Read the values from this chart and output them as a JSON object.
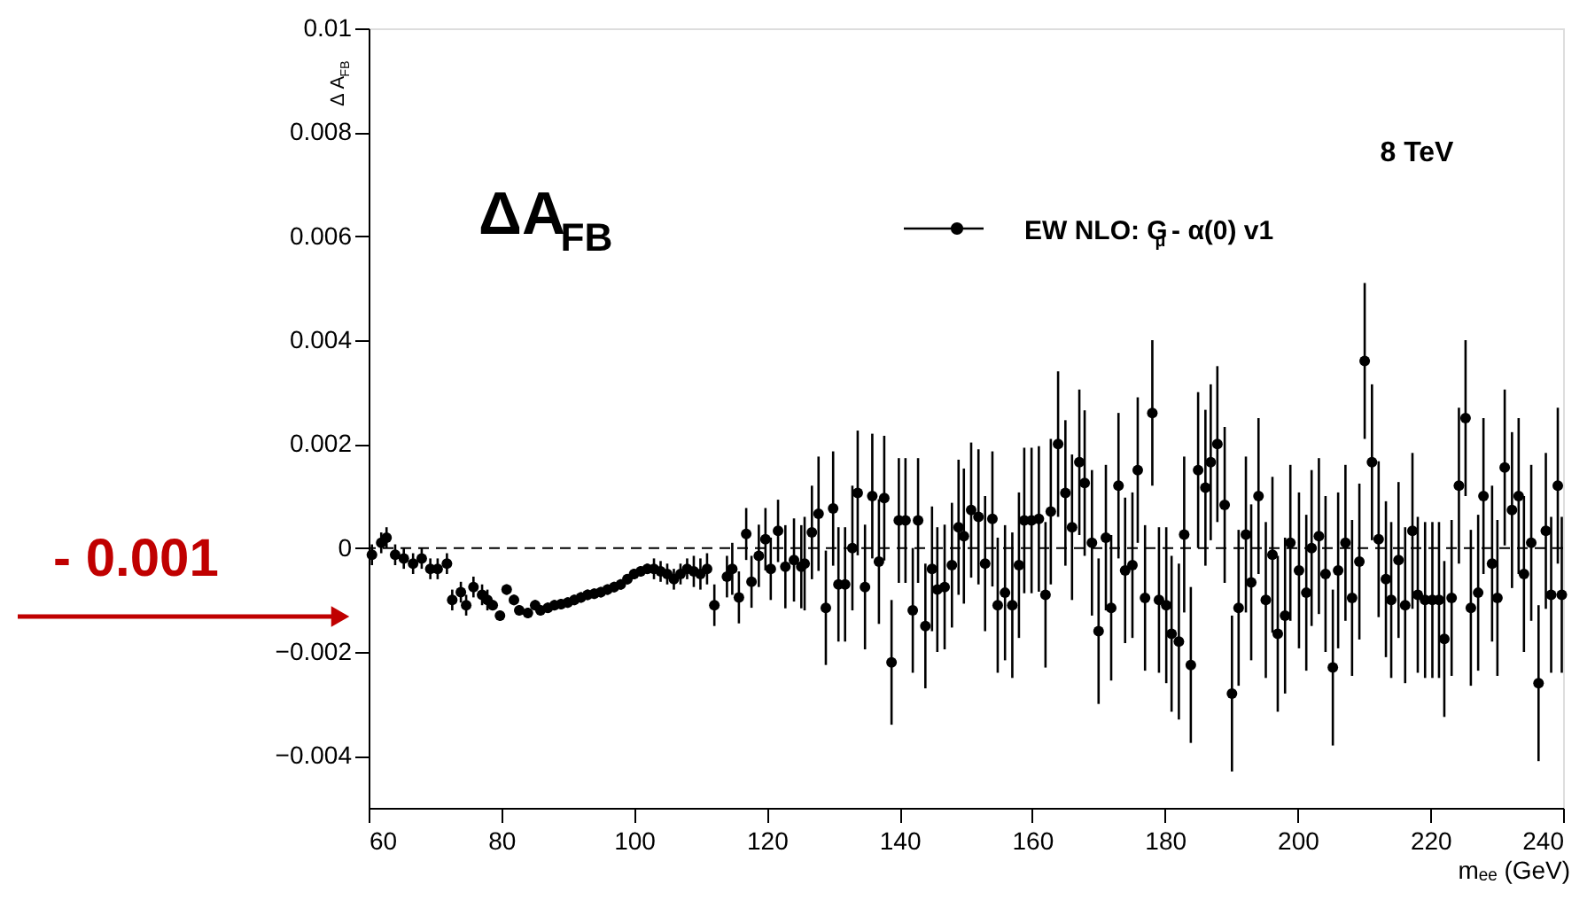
{
  "chart_data": {
    "type": "scatter",
    "xlabel": "mₑₑ (GeV)",
    "ylabel": "Δ A$_{FB}$",
    "annotations": [
      "8 TeV",
      "ΔA$_{FB}$",
      "- 0.001"
    ],
    "x": [
      60.5,
      61.9,
      62.7,
      64.0,
      65.3,
      66.7,
      68.0,
      69.3,
      70.4,
      71.8,
      72.6,
      73.9,
      74.7,
      75.8,
      77.1,
      77.9,
      78.7,
      79.8,
      80.8,
      81.9,
      82.7,
      84.0,
      85.1,
      85.9,
      87,
      88,
      89,
      90,
      91,
      92,
      93,
      94,
      95,
      96,
      97,
      98,
      99,
      100,
      101,
      102,
      103,
      104,
      105,
      106,
      107,
      108,
      109,
      110,
      111,
      112.1,
      114.0,
      114.8,
      115.8,
      116.9,
      117.7,
      118.8,
      119.8,
      120.6,
      121.7,
      122.8,
      124.1,
      125.2,
      125.7,
      126.8,
      127.8,
      128.9,
      130.0,
      130.8,
      131.8,
      132.9,
      133.7,
      134.8,
      135.9,
      136.9,
      137.7,
      138.8,
      139.9,
      140.9,
      142.0,
      142.8,
      143.9,
      144.9,
      145.7,
      146.8,
      147.9,
      148.9,
      149.7,
      150.8,
      151.9,
      152.9,
      154.0,
      154.8,
      155.9,
      157.0,
      158.0,
      158.8,
      159.9,
      161.0,
      162.0,
      162.8,
      163.9,
      165.0,
      166.0,
      167.1,
      167.9,
      169.0,
      170.0,
      171.1,
      171.9,
      173.0,
      174.0,
      175.1,
      175.9,
      177.0,
      178.1,
      179.1,
      180.2,
      181.0,
      182.1,
      182.9,
      183.9,
      185.0,
      186.1,
      186.9,
      187.9,
      189.0,
      190.1,
      191.1,
      192.2,
      193.0,
      194.1,
      195.2,
      196.2,
      197.0,
      198.1,
      198.9,
      200.2,
      201.3,
      202.1,
      203.2,
      204.2,
      205.3,
      206.1,
      207.2,
      208.2,
      209.3,
      210.1,
      211.2,
      212.2,
      213.3,
      214.1,
      215.2,
      216.2,
      217.3,
      218.1,
      219.2,
      220.3,
      221.3,
      222.1,
      223.2,
      224.3,
      225.3,
      226.1,
      227.2,
      228.0,
      229.3,
      230.1,
      231.2,
      232.3,
      233.3,
      234.1,
      235.2,
      236.3,
      237.4,
      238.2,
      239.2,
      239.8
    ],
    "series": [
      {
        "name": "EW NLO: G$_{μ}$ - α(0) v1",
        "color": "#000000",
        "values": [
          -0.00013,
          0.0001,
          0.0002,
          -0.00013,
          -0.0002,
          -0.0003,
          -0.0002,
          -0.0004,
          -0.0004,
          -0.0003,
          -0.001,
          -0.00085,
          -0.0011,
          -0.00075,
          -0.0009,
          -0.001,
          -0.0011,
          -0.0013,
          -0.0008,
          -0.001,
          -0.0012,
          -0.00125,
          -0.0011,
          -0.0012,
          -0.00115,
          -0.0011,
          -0.00108,
          -0.00105,
          -0.001,
          -0.00095,
          -0.0009,
          -0.00088,
          -0.00085,
          -0.0008,
          -0.00075,
          -0.0007,
          -0.0006,
          -0.0005,
          -0.00045,
          -0.0004,
          -0.0004,
          -0.00045,
          -0.0005,
          -0.0006,
          -0.0005,
          -0.0004,
          -0.00045,
          -0.0005,
          -0.0004,
          -0.0011,
          -0.00055,
          -0.0004,
          -0.00095,
          0.00027,
          -0.00065,
          -0.00015,
          0.00017,
          -0.0004,
          0.00033,
          -0.00036,
          -0.00023,
          -0.00036,
          -0.0003,
          0.0003,
          0.00066,
          -0.00115,
          0.00076,
          -0.0007,
          -0.0007,
          0.0,
          0.00106,
          -0.00075,
          0.001,
          -0.00026,
          0.00096,
          -0.0022,
          0.00053,
          0.00053,
          -0.0012,
          0.00053,
          -0.0015,
          -0.0004,
          -0.0008,
          -0.00075,
          -0.00033,
          0.0004,
          0.00023,
          0.00073,
          0.0006,
          -0.0003,
          0.00056,
          -0.0011,
          -0.00086,
          -0.0011,
          -0.00033,
          0.00053,
          0.00053,
          0.00056,
          -0.0009,
          0.0007,
          0.002,
          0.00106,
          0.0004,
          0.00165,
          0.00125,
          0.0001,
          -0.0016,
          0.0002,
          -0.00115,
          0.0012,
          -0.00043,
          -0.00033,
          0.0015,
          -0.00096,
          0.0026,
          -0.001,
          -0.0011,
          -0.00165,
          -0.0018,
          0.00026,
          -0.00225,
          0.0015,
          0.00116,
          0.00165,
          0.002,
          0.00083,
          -0.0028,
          -0.00115,
          0.00026,
          -0.00066,
          0.001,
          -0.001,
          -0.00013,
          -0.00165,
          -0.0013,
          0.0001,
          -0.00043,
          -0.00086,
          0.0,
          0.00023,
          -0.0005,
          -0.0023,
          -0.00043,
          0.0001,
          -0.00096,
          -0.00026,
          0.0036,
          0.00165,
          0.00017,
          -0.0006,
          -0.001,
          -0.00023,
          -0.0011,
          0.00033,
          -0.0009,
          -0.001,
          -0.001,
          -0.001,
          -0.00175,
          -0.00096,
          0.0012,
          0.0025,
          -0.00115,
          -0.00086,
          0.001,
          -0.0003,
          -0.00096,
          0.00155,
          0.00073,
          0.001,
          -0.0005,
          0.0001,
          -0.0026,
          0.00033,
          -0.0009,
          0.0012,
          -0.0009
        ],
        "errors": [
          0.0002,
          0.0002,
          0.0002,
          0.0002,
          0.0002,
          0.0002,
          0.0002,
          0.0002,
          0.0002,
          0.0002,
          0.0002,
          0.0002,
          0.0002,
          0.0002,
          0.0002,
          0.0002,
          0.0001,
          0.0001,
          0.0001,
          0.0001,
          0.0001,
          0.0001,
          0.0001,
          0.0001,
          0.0001,
          0.0001,
          0.0001,
          0.0001,
          0.0001,
          0.0001,
          0.0001,
          0.0001,
          0.0001,
          0.0001,
          0.0001,
          0.0001,
          0.0001,
          0.0001,
          0.0001,
          0.0001,
          0.0002,
          0.0002,
          0.0002,
          0.0002,
          0.0002,
          0.0002,
          0.0003,
          0.0003,
          0.0003,
          0.0004,
          0.0004,
          0.0005,
          0.0005,
          0.0005,
          0.0005,
          0.0006,
          0.0006,
          0.0006,
          0.0006,
          0.0008,
          0.0008,
          0.0008,
          0.0009,
          0.0009,
          0.0011,
          0.0011,
          0.0011,
          0.0011,
          0.0011,
          0.0012,
          0.0012,
          0.0012,
          0.0012,
          0.0012,
          0.0012,
          0.0012,
          0.0012,
          0.0012,
          0.0012,
          0.0012,
          0.0012,
          0.0012,
          0.0012,
          0.0012,
          0.0012,
          0.0013,
          0.0013,
          0.0013,
          0.0013,
          0.0013,
          0.0013,
          0.0013,
          0.0013,
          0.0014,
          0.0014,
          0.0014,
          0.0014,
          0.0014,
          0.0014,
          0.0014,
          0.0014,
          0.0014,
          0.0014,
          0.0014,
          0.0014,
          0.0014,
          0.0014,
          0.0014,
          0.0014,
          0.0014,
          0.0014,
          0.0014,
          0.0014,
          0.0014,
          0.0014,
          0.0014,
          0.0015,
          0.0015,
          0.0015,
          0.0015,
          0.0015,
          0.0015,
          0.0015,
          0.0015,
          0.0015,
          0.0015,
          0.0015,
          0.0015,
          0.0015,
          0.0015,
          0.0015,
          0.0015,
          0.0015,
          0.0015,
          0.0015,
          0.0015,
          0.0015,
          0.0015,
          0.0015,
          0.0015,
          0.0015,
          0.0015,
          0.0015,
          0.0015,
          0.0015,
          0.0015,
          0.0015,
          0.0015,
          0.0015,
          0.0015,
          0.0015,
          0.0015,
          0.0015,
          0.0015,
          0.0015,
          0.0015,
          0.0015,
          0.0015,
          0.0015,
          0.0015,
          0.0015,
          0.0015,
          0.0015,
          0.0015,
          0.0015,
          0.0015,
          0.0015,
          0.0015,
          0.0015,
          0.0015,
          0.0015,
          0.0015,
          0.0015,
          0.0015,
          0.0015,
          0.0015,
          0.0015
        ]
      }
    ],
    "xlim": [
      60,
      240
    ],
    "ylim": [
      -0.005,
      0.01
    ],
    "xticks": [
      60,
      80,
      100,
      120,
      140,
      160,
      180,
      200,
      220,
      240
    ],
    "yticks": [
      {
        "value": -0.004,
        "label": "−0.004"
      },
      {
        "value": -0.002,
        "label": "−0.002"
      },
      0,
      0.002,
      0.004,
      0.006,
      0.008,
      0.01
    ],
    "ref_lines": [
      {
        "axis": "y",
        "value": 0,
        "line_style": "dashed",
        "color": "#000000"
      }
    ],
    "legend": "top right",
    "marker": "circle",
    "grid": false
  }
}
